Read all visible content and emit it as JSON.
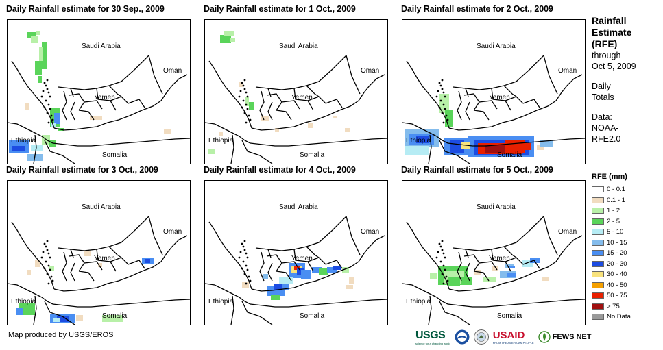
{
  "panels": [
    {
      "title": "Daily Rainfall estimate for 30 Sep., 2009"
    },
    {
      "title": "Daily Rainfall estimate for 1 Oct., 2009"
    },
    {
      "title": "Daily Rainfall estimate for 2 Oct., 2009"
    },
    {
      "title": "Daily Rainfall estimate for 3 Oct., 2009"
    },
    {
      "title": "Daily Rainfall estimate for 4 Oct., 2009"
    },
    {
      "title": "Daily Rainfall estimate for 5 Oct., 2009"
    }
  ],
  "map_labels": {
    "saudi": "Saudi Arabia",
    "oman": "Oman",
    "yemen": "Yemen",
    "ethiopia": "Ethiopia",
    "somalia": "Somalia"
  },
  "sidebar": {
    "title_line1": "Rainfall",
    "title_line2": "Estimate",
    "title_line3": "(RFE)",
    "through": "through",
    "date": "Oct 5, 2009",
    "daily1": "Daily",
    "daily2": "Totals",
    "data_label": "Data:",
    "data_src1": "NOAA-",
    "data_src2": "RFE2.0"
  },
  "legend": {
    "title": "RFE (mm)",
    "items": [
      {
        "label": "0 - 0.1",
        "color": "#ffffff"
      },
      {
        "label": "0.1 - 1",
        "color": "#f1dcc0"
      },
      {
        "label": "1 - 2",
        "color": "#b8f0a8"
      },
      {
        "label": "2 - 5",
        "color": "#5ad45a"
      },
      {
        "label": "5 - 10",
        "color": "#b6ecf4"
      },
      {
        "label": "10 - 15",
        "color": "#84bcec"
      },
      {
        "label": "15 - 20",
        "color": "#4a8ef2"
      },
      {
        "label": "20 - 30",
        "color": "#1c4ce2"
      },
      {
        "label": "30 - 40",
        "color": "#f8e27c"
      },
      {
        "label": "40 - 50",
        "color": "#f5a000"
      },
      {
        "label": "50 - 75",
        "color": "#e82000"
      },
      {
        "label": "> 75",
        "color": "#a01010"
      },
      {
        "label": "No Data",
        "color": "#9a9a9a"
      }
    ]
  },
  "credit": "Map produced by USGS/EROS",
  "logos": {
    "usgs": "USGS",
    "usgs_tag": "science for a changing world",
    "usaid": "USAID",
    "usaid_tag": "FROM THE AMERICAN PEOPLE",
    "fews": "FEWS NET"
  }
}
